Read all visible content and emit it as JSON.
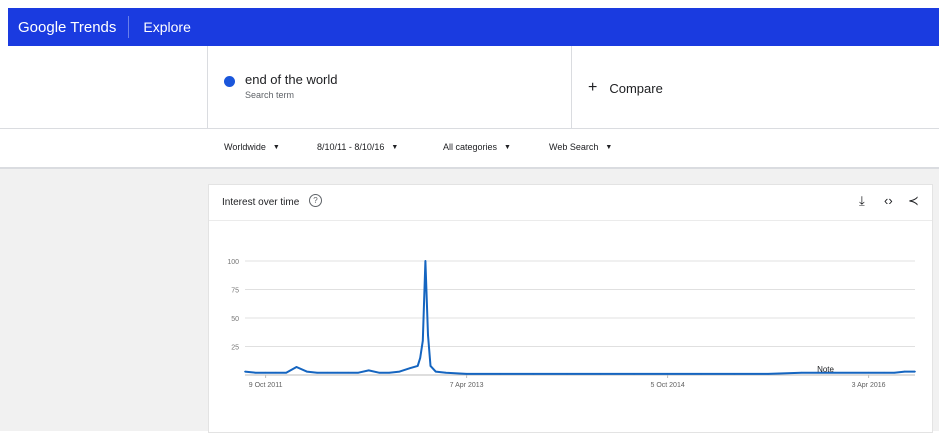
{
  "header": {
    "logo": "Google Trends",
    "explore": "Explore"
  },
  "term": {
    "name": "end of the  world",
    "subtitle": "Search term",
    "color": "#1a56db"
  },
  "compare": {
    "label": "Compare"
  },
  "filters": {
    "region": "Worldwide",
    "date_range": "8/10/11 - 8/10/16",
    "category": "All categories",
    "search_type": "Web Search"
  },
  "card": {
    "title": "Interest over time"
  },
  "chart_data": {
    "type": "line",
    "title": "",
    "xlabel": "",
    "ylabel": "",
    "ylim": [
      0,
      100
    ],
    "yticks": [
      100,
      75,
      50,
      25
    ],
    "xtick_labels": [
      "9 Oct 2011",
      "7 Apr 2013",
      "5 Oct 2014",
      "3 Apr 2016"
    ],
    "annotation": "Note",
    "grid": true,
    "series": [
      {
        "color": "#1565c0",
        "x": [
          "2011-08-14",
          "2011-09-11",
          "2011-10-09",
          "2011-11-06",
          "2011-12-04",
          "2012-01-01",
          "2012-01-29",
          "2012-02-26",
          "2012-03-25",
          "2012-04-22",
          "2012-05-20",
          "2012-06-17",
          "2012-07-15",
          "2012-08-12",
          "2012-09-09",
          "2012-10-07",
          "2012-11-04",
          "2012-11-25",
          "2012-12-02",
          "2012-12-09",
          "2012-12-16",
          "2012-12-23",
          "2012-12-30",
          "2013-01-13",
          "2013-02-10",
          "2013-04-07",
          "2013-07-07",
          "2013-10-06",
          "2014-01-05",
          "2014-04-06",
          "2014-07-06",
          "2014-10-05",
          "2015-01-04",
          "2015-04-05",
          "2015-07-05",
          "2015-10-04",
          "2016-01-03",
          "2016-04-03",
          "2016-05-15",
          "2016-06-12",
          "2016-07-10",
          "2016-08-07"
        ],
        "values": [
          3,
          2,
          2,
          2,
          2,
          7,
          3,
          2,
          2,
          2,
          2,
          2,
          4,
          2,
          2,
          3,
          6,
          8,
          15,
          30,
          100,
          35,
          8,
          3,
          2,
          1,
          1,
          1,
          1,
          1,
          1,
          1,
          1,
          1,
          1,
          2,
          2,
          2,
          2,
          2,
          3,
          3
        ]
      }
    ]
  }
}
